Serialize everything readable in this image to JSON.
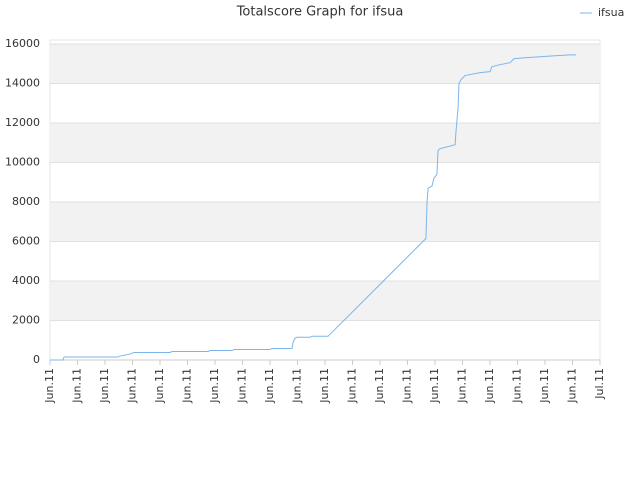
{
  "chart_data": {
    "type": "line",
    "title": "Totalscore Graph for ifsua",
    "series": [
      {
        "name": "ifsua",
        "color": "#7cb5ec",
        "x": [
          0,
          0.47,
          0.51,
          2.47,
          2.55,
          2.73,
          2.91,
          3.05,
          4.36,
          4.44,
          5.75,
          5.82,
          6.62,
          6.69,
          8,
          8.07,
          8.8,
          8.84,
          8.91,
          8.98,
          9.45,
          9.53,
          10.11,
          13.67,
          13.71,
          13.75,
          13.89,
          13.96,
          14.07,
          14.11,
          14.18,
          14.73,
          14.76,
          14.84,
          14.87,
          14.95,
          15.09,
          15.27,
          15.64,
          16,
          16.07,
          16.36,
          16.73,
          16.87,
          17.27,
          17.82,
          18.36,
          18.91,
          19.13
        ],
        "values": [
          0,
          0,
          150,
          150,
          200,
          250,
          300,
          380,
          380,
          430,
          430,
          480,
          480,
          530,
          530,
          580,
          580,
          900,
          1100,
          1150,
          1150,
          1200,
          1200,
          6150,
          8000,
          8700,
          8800,
          9200,
          9400,
          10600,
          10700,
          10900,
          11500,
          12800,
          14000,
          14200,
          14400,
          14450,
          14550,
          14600,
          14850,
          14950,
          15050,
          15250,
          15300,
          15350,
          15400,
          15450,
          15450
        ]
      }
    ],
    "xlim": [
      0,
      20
    ],
    "xticks": [
      {
        "value": 0,
        "label": "Jun.11"
      },
      {
        "value": 1,
        "label": "Jun.11"
      },
      {
        "value": 2,
        "label": "Jun.11"
      },
      {
        "value": 3,
        "label": "Jun.11"
      },
      {
        "value": 4,
        "label": "Jun.11"
      },
      {
        "value": 5,
        "label": "Jun.11"
      },
      {
        "value": 6,
        "label": "Jun.11"
      },
      {
        "value": 7,
        "label": "Jun.11"
      },
      {
        "value": 8,
        "label": "Jun.11"
      },
      {
        "value": 9,
        "label": "Jun.11"
      },
      {
        "value": 10,
        "label": "Jun.11"
      },
      {
        "value": 11,
        "label": "Jun.11"
      },
      {
        "value": 12,
        "label": "Jun.11"
      },
      {
        "value": 13,
        "label": "Jun.11"
      },
      {
        "value": 14,
        "label": "Jun.11"
      },
      {
        "value": 15,
        "label": "Jun.11"
      },
      {
        "value": 16,
        "label": "Jun.11"
      },
      {
        "value": 17,
        "label": "Jun.11"
      },
      {
        "value": 18,
        "label": "Jun.11"
      },
      {
        "value": 19,
        "label": "Jun.11"
      },
      {
        "value": 20,
        "label": "Jul.11"
      }
    ],
    "ylim": [
      0,
      16200
    ],
    "yticks": [
      0,
      2000,
      4000,
      6000,
      8000,
      10000,
      12000,
      14000,
      16000
    ],
    "grid": true,
    "legend": "top-right"
  }
}
